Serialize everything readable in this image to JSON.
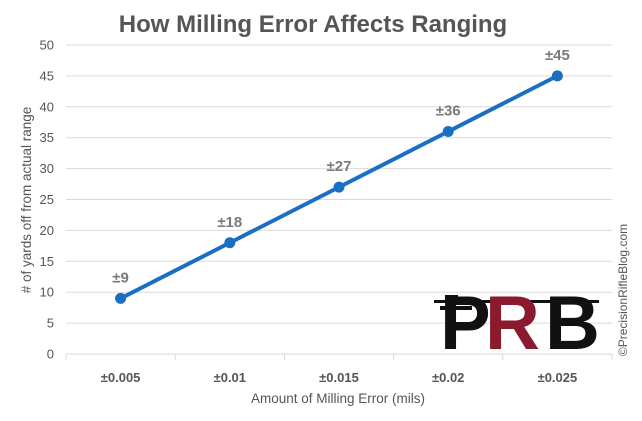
{
  "chart_data": {
    "type": "line",
    "title": "How Milling Error Affects Ranging",
    "xlabel": "Amount of Milling Error (mils)",
    "ylabel": "# of yards off from actual range",
    "categories": [
      "±0.005",
      "±0.01",
      "±0.015",
      "±0.02",
      "±0.025"
    ],
    "series": [
      {
        "values": [
          9,
          18,
          27,
          36,
          45
        ],
        "labels": [
          "±9",
          "±18",
          "±27",
          "±36",
          "±45"
        ],
        "color": "#1a6fc4"
      }
    ],
    "ylim": [
      0,
      50
    ],
    "yticks": [
      0,
      5,
      10,
      15,
      20,
      25,
      30,
      35,
      40,
      45,
      50
    ],
    "grid": "horizontal",
    "legend": "none"
  },
  "watermark": {
    "copyright": "©PrecisionRifleBlog.com",
    "logo_text": "PRB"
  },
  "colors": {
    "line": "#1a6fc4",
    "gridline": "#d9d9d9",
    "text": "#555555",
    "data_label": "#7a7a7a",
    "logo_dark": "#111111",
    "logo_red": "#8b1a2e"
  }
}
